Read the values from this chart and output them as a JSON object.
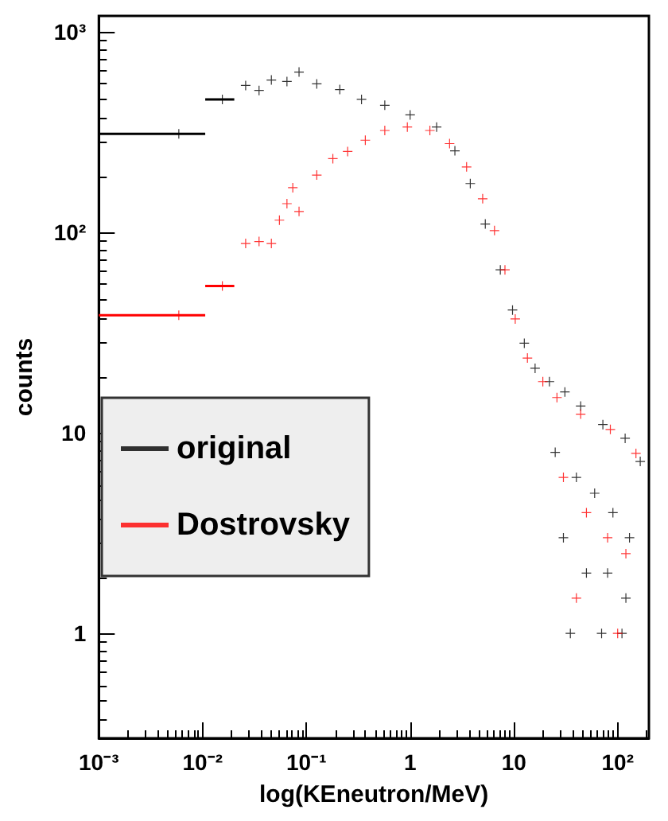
{
  "chart_data": {
    "type": "scatter",
    "xlabel": "log(KEneutron/MeV)",
    "ylabel": "counts",
    "log": "xy",
    "xlim": [
      0.001,
      200
    ],
    "ylim": [
      0.3,
      1200
    ],
    "xticks": [
      {
        "value": 0.001,
        "label": "10⁻³"
      },
      {
        "value": 0.01,
        "label": "10⁻²"
      },
      {
        "value": 0.1,
        "label": "10⁻¹"
      },
      1,
      10,
      {
        "value": 100,
        "label": "10²"
      }
    ],
    "yticks": [
      1,
      10,
      {
        "value": 100,
        "label": "10²"
      },
      {
        "value": 1000,
        "label": "10³"
      }
    ],
    "grid": false,
    "legend": "bottom left",
    "marker": "cross",
    "series": [
      {
        "name": "original",
        "color": "#000000",
        "x": [
          0.0059,
          0.0155,
          0.026,
          0.035,
          0.046,
          0.065,
          0.085,
          0.126,
          0.21,
          0.34,
          0.57,
          1,
          1.8,
          2.7,
          3.8,
          5.3,
          7.4,
          9.7,
          12.6,
          16,
          22,
          31,
          44,
          72,
          118,
          165,
          25,
          40,
          60,
          90,
          130,
          30,
          50,
          80,
          120,
          35,
          70,
          110
        ],
        "values": [
          310,
          460,
          540,
          510,
          575,
          565,
          630,
          550,
          515,
          460,
          430,
          385,
          335,
          255,
          175,
          110,
          65,
          41,
          28,
          21,
          18,
          16,
          13.6,
          11,
          9.4,
          7.2,
          8,
          6,
          5,
          4,
          3,
          3,
          2,
          2,
          1.5,
          1,
          1,
          1
        ],
        "xerrors": [
          [
            0.001,
            0.0106
          ],
          [
            0.0106,
            0.0202
          ],
          null,
          null,
          null,
          null,
          null,
          null,
          null,
          null,
          null,
          null,
          null,
          null,
          null,
          null,
          null,
          null,
          null,
          null,
          null,
          null,
          null,
          null,
          null,
          null,
          null,
          null,
          null,
          null,
          null,
          null,
          null,
          null,
          null,
          null,
          null,
          null
        ]
      },
      {
        "name": "Dostrovsky",
        "color": "#ff0000",
        "x": [
          0.0059,
          0.0155,
          0.026,
          0.035,
          0.046,
          0.055,
          0.065,
          0.074,
          0.085,
          0.126,
          0.18,
          0.25,
          0.37,
          0.57,
          0.94,
          1.55,
          2.4,
          3.5,
          5,
          6.5,
          8.2,
          10.3,
          13.5,
          19,
          26,
          44,
          85,
          150,
          30,
          50,
          80,
          120,
          40,
          100
        ],
        "values": [
          38.6,
          54,
          88,
          90,
          88,
          115,
          139,
          167,
          127,
          193,
          233,
          253,
          288,
          322,
          335,
          322,
          277,
          212,
          147,
          102,
          65,
          37,
          23.6,
          18,
          15,
          12.4,
          10.4,
          7.9,
          6,
          4,
          3,
          2.5,
          1.5,
          1
        ],
        "xerrors": [
          [
            0.001,
            0.0106
          ],
          [
            0.0106,
            0.0202
          ],
          null,
          null,
          null,
          null,
          null,
          null,
          null,
          null,
          null,
          null,
          null,
          null,
          null,
          null,
          null,
          null,
          null,
          null,
          null,
          null,
          null,
          null,
          null,
          null,
          null,
          null,
          null,
          null,
          null,
          null,
          null,
          null
        ]
      }
    ]
  }
}
